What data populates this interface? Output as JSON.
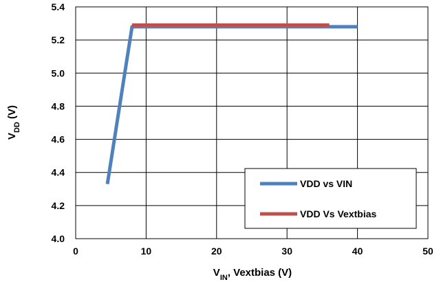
{
  "chart_data": {
    "type": "line",
    "xlabel": {
      "main": "V",
      "sub": "IN",
      "rest": ", Vextbias (V)"
    },
    "ylabel": {
      "main": "V",
      "sub": "DD",
      "rest": " (V)"
    },
    "xlim": [
      0,
      50
    ],
    "ylim": [
      4.0,
      5.4
    ],
    "xticks": [
      0,
      10,
      20,
      30,
      40,
      50
    ],
    "xtick_labels": [
      "0",
      "10",
      "20",
      "30",
      "40",
      "50"
    ],
    "yticks": [
      4.0,
      4.2,
      4.4,
      4.6,
      4.8,
      5.0,
      5.2,
      5.4
    ],
    "ytick_labels": [
      "4.0",
      "4.2",
      "4.4",
      "4.6",
      "4.8",
      "5.0",
      "5.2",
      "5.4"
    ],
    "grid": true,
    "legend_position": "bottom-right",
    "series": [
      {
        "name": "VDD vs VIN",
        "color": "#4f81bd",
        "x": [
          4.5,
          8,
          40
        ],
        "y": [
          4.33,
          5.28,
          5.28
        ]
      },
      {
        "name": "VDD Vs Vextbias",
        "color": "#c0504d",
        "x": [
          8,
          36
        ],
        "y": [
          5.29,
          5.29
        ]
      }
    ]
  }
}
